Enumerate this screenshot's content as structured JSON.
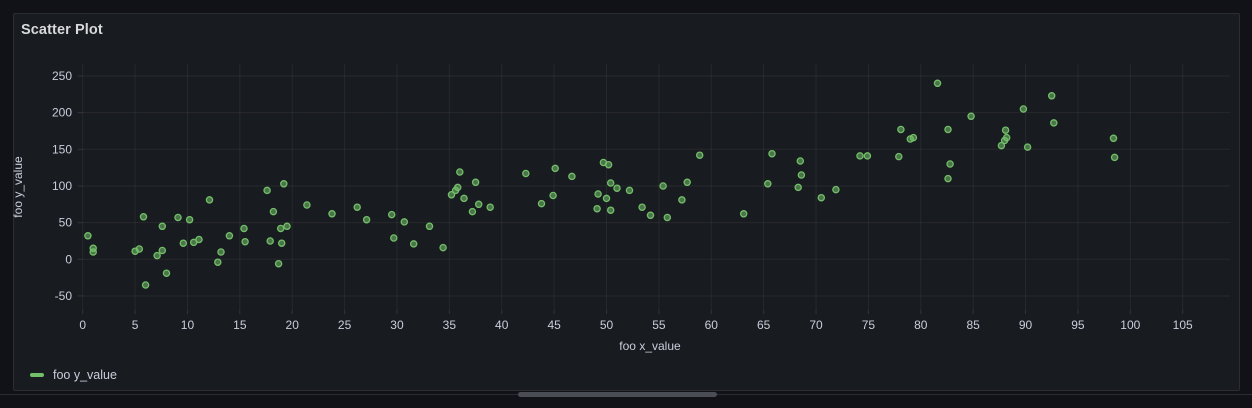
{
  "panel": {
    "title": "Scatter Plot",
    "legend": {
      "label": "foo y_value",
      "color": "#73bf69"
    }
  },
  "chart_data": {
    "type": "scatter",
    "title": "Scatter Plot",
    "xlabel": "foo x_value",
    "ylabel": "foo y_value",
    "x_ticks": [
      0,
      5,
      10,
      15,
      20,
      25,
      30,
      35,
      40,
      45,
      50,
      55,
      60,
      65,
      70,
      75,
      80,
      85,
      90,
      95,
      100,
      105
    ],
    "y_ticks": [
      -50,
      0,
      50,
      100,
      150,
      200,
      250
    ],
    "xlim": [
      0,
      110
    ],
    "ylim": [
      -70,
      265
    ],
    "grid": true,
    "legend_position": "bottom-left",
    "colors": {
      "point": "#73bf69",
      "text": "#ccccdc",
      "grid": "rgba(204,204,220,0.08)",
      "panel_background": "#181b1f",
      "page_background": "#111217"
    },
    "series": [
      {
        "name": "foo y_value",
        "color": "#73bf69",
        "points": [
          [
            0.5,
            32
          ],
          [
            1.0,
            15
          ],
          [
            1.0,
            10
          ],
          [
            5.0,
            11
          ],
          [
            5.4,
            14
          ],
          [
            5.8,
            58
          ],
          [
            6.0,
            -35
          ],
          [
            7.1,
            5
          ],
          [
            7.6,
            45
          ],
          [
            7.6,
            12
          ],
          [
            8.0,
            -19
          ],
          [
            9.1,
            57
          ],
          [
            9.6,
            22
          ],
          [
            10.2,
            54
          ],
          [
            10.6,
            23
          ],
          [
            11.1,
            27
          ],
          [
            12.1,
            81
          ],
          [
            12.9,
            -4
          ],
          [
            13.2,
            10
          ],
          [
            14.0,
            32
          ],
          [
            15.4,
            42
          ],
          [
            15.5,
            24
          ],
          [
            17.6,
            94
          ],
          [
            17.9,
            25
          ],
          [
            18.2,
            65
          ],
          [
            18.7,
            -6
          ],
          [
            18.9,
            42
          ],
          [
            19.0,
            22
          ],
          [
            19.2,
            103
          ],
          [
            19.5,
            45
          ],
          [
            21.4,
            74
          ],
          [
            23.8,
            62
          ],
          [
            26.2,
            71
          ],
          [
            27.1,
            54
          ],
          [
            29.5,
            61
          ],
          [
            29.7,
            29
          ],
          [
            30.7,
            51
          ],
          [
            31.6,
            21
          ],
          [
            33.1,
            45
          ],
          [
            34.4,
            16
          ],
          [
            35.2,
            88
          ],
          [
            35.6,
            94
          ],
          [
            35.8,
            98
          ],
          [
            36.0,
            119
          ],
          [
            36.4,
            83
          ],
          [
            37.2,
            65
          ],
          [
            37.5,
            105
          ],
          [
            37.8,
            75
          ],
          [
            38.9,
            71
          ],
          [
            42.3,
            117
          ],
          [
            43.8,
            76
          ],
          [
            44.9,
            87
          ],
          [
            45.1,
            124
          ],
          [
            46.7,
            113
          ],
          [
            49.1,
            69
          ],
          [
            49.2,
            89
          ],
          [
            49.7,
            132
          ],
          [
            50.0,
            83
          ],
          [
            50.2,
            129
          ],
          [
            50.4,
            104
          ],
          [
            50.4,
            67
          ],
          [
            51.0,
            97
          ],
          [
            52.2,
            94
          ],
          [
            53.4,
            71
          ],
          [
            54.2,
            60
          ],
          [
            55.4,
            100
          ],
          [
            55.8,
            57
          ],
          [
            57.2,
            81
          ],
          [
            57.7,
            105
          ],
          [
            58.9,
            142
          ],
          [
            63.1,
            62
          ],
          [
            65.4,
            103
          ],
          [
            65.8,
            144
          ],
          [
            68.3,
            98
          ],
          [
            68.5,
            134
          ],
          [
            68.6,
            115
          ],
          [
            70.5,
            84
          ],
          [
            71.9,
            95
          ],
          [
            74.2,
            141
          ],
          [
            74.9,
            141
          ],
          [
            77.9,
            140
          ],
          [
            78.1,
            177
          ],
          [
            79.0,
            164
          ],
          [
            79.3,
            166
          ],
          [
            81.6,
            240
          ],
          [
            82.6,
            177
          ],
          [
            82.6,
            110
          ],
          [
            82.8,
            130
          ],
          [
            84.8,
            195
          ],
          [
            87.7,
            155
          ],
          [
            88.0,
            162
          ],
          [
            88.2,
            166
          ],
          [
            88.1,
            176
          ],
          [
            89.8,
            205
          ],
          [
            90.2,
            153
          ],
          [
            92.5,
            223
          ],
          [
            92.7,
            186
          ],
          [
            98.4,
            165
          ],
          [
            98.5,
            139
          ]
        ]
      }
    ]
  }
}
